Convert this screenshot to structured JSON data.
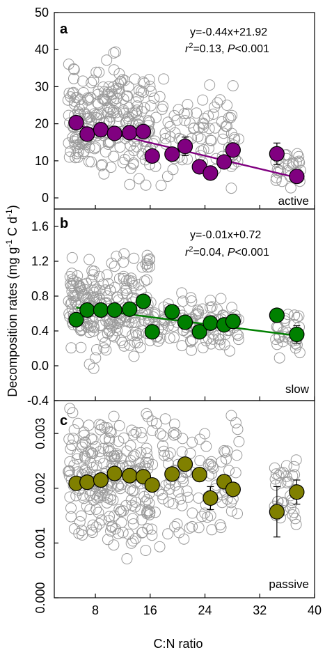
{
  "figure": {
    "ylabel_prefix": "Decomposition rates (mg g",
    "ylabel_exp1": "-1",
    "ylabel_mid": " C d",
    "ylabel_exp2": "-1",
    "ylabel_suffix": ")",
    "xlabel": "C:N ratio"
  },
  "chart_data": [
    {
      "type": "scatter",
      "panel": "a",
      "pool_label": "active",
      "equation": "y=-0.44x+21.92",
      "stats": {
        "r2_text": "=0.13, ",
        "p_text": "<0.001"
      },
      "xlim": [
        2,
        40
      ],
      "ylim": [
        -3,
        50
      ],
      "xticks": [
        8,
        16,
        24,
        32,
        40
      ],
      "yticks": [
        0,
        10,
        20,
        30,
        40,
        50
      ],
      "ytick_labels": [
        "0",
        "10",
        "20",
        "30",
        "40",
        "50"
      ],
      "marker_color": "#800080",
      "line_color": "#800080",
      "trend_line": {
        "slope": -0.44,
        "intercept": 21.92,
        "x_range": [
          5.2,
          37.5
        ]
      },
      "means": [
        {
          "x": 5.2,
          "y": 20.3,
          "err": 0
        },
        {
          "x": 6.8,
          "y": 17.2,
          "err": 0
        },
        {
          "x": 8.8,
          "y": 18.4,
          "err": 0
        },
        {
          "x": 10.8,
          "y": 17.4,
          "err": 0
        },
        {
          "x": 13.0,
          "y": 17.6,
          "err": 0
        },
        {
          "x": 15.0,
          "y": 17.9,
          "err": 0
        },
        {
          "x": 16.3,
          "y": 11.3,
          "err": 1.0
        },
        {
          "x": 19.2,
          "y": 11.8,
          "err": 0
        },
        {
          "x": 21.1,
          "y": 13.9,
          "err": 2.5
        },
        {
          "x": 23.2,
          "y": 8.4,
          "err": 0
        },
        {
          "x": 24.8,
          "y": 6.7,
          "err": 0
        },
        {
          "x": 26.8,
          "y": 9.7,
          "err": 1.3
        },
        {
          "x": 28.1,
          "y": 12.9,
          "err": 0
        },
        {
          "x": 34.5,
          "y": 11.9,
          "err": 2.9
        },
        {
          "x": 37.4,
          "y": 5.8,
          "err": 1.0
        }
      ],
      "raw": {
        "seed": 11,
        "count": 360,
        "clusters": [
          {
            "x": [
              4,
              16
            ],
            "y": [
              0,
              42
            ],
            "w": 0.62
          },
          {
            "x": [
              16,
              29
            ],
            "y": [
              0,
              36
            ],
            "w": 0.3
          },
          {
            "x": [
              34,
              38
            ],
            "y": [
              1,
              16
            ],
            "w": 0.08
          }
        ]
      }
    },
    {
      "type": "scatter",
      "panel": "b",
      "pool_label": "slow",
      "equation": "y=-0.01x+0.72",
      "stats": {
        "r2_text": "=0.04, ",
        "p_text": "<0.001"
      },
      "xlim": [
        2,
        40
      ],
      "ylim": [
        -0.4,
        1.8
      ],
      "xticks": [
        8,
        16,
        24,
        32,
        40
      ],
      "yticks": [
        -0.4,
        0.0,
        0.4,
        0.8,
        1.2,
        1.6
      ],
      "ytick_labels": [
        "-0.4",
        "0.0",
        "0.4",
        "0.8",
        "1.2",
        "1.6"
      ],
      "marker_color": "#008000",
      "line_color": "#008000",
      "trend_line": {
        "slope": -0.01,
        "intercept": 0.72,
        "x_range": [
          5.2,
          37.5
        ]
      },
      "means": [
        {
          "x": 5.2,
          "y": 0.53,
          "err": 0
        },
        {
          "x": 6.8,
          "y": 0.64,
          "err": 0
        },
        {
          "x": 8.8,
          "y": 0.64,
          "err": 0
        },
        {
          "x": 10.8,
          "y": 0.64,
          "err": 0
        },
        {
          "x": 13.0,
          "y": 0.65,
          "err": 0
        },
        {
          "x": 15.0,
          "y": 0.74,
          "err": 0
        },
        {
          "x": 16.3,
          "y": 0.39,
          "err": 0
        },
        {
          "x": 19.2,
          "y": 0.62,
          "err": 0
        },
        {
          "x": 21.1,
          "y": 0.5,
          "err": 0
        },
        {
          "x": 23.2,
          "y": 0.39,
          "err": 0
        },
        {
          "x": 24.8,
          "y": 0.49,
          "err": 0
        },
        {
          "x": 26.8,
          "y": 0.47,
          "err": 0
        },
        {
          "x": 28.1,
          "y": 0.51,
          "err": 0
        },
        {
          "x": 34.5,
          "y": 0.58,
          "err": 0
        },
        {
          "x": 37.4,
          "y": 0.36,
          "err": 0.1
        }
      ],
      "raw": {
        "seed": 23,
        "count": 360,
        "clusters": [
          {
            "x": [
              4,
              16
            ],
            "y": [
              -0.18,
              1.58
            ],
            "w": 0.62
          },
          {
            "x": [
              16,
              29
            ],
            "y": [
              0.05,
              0.95
            ],
            "w": 0.3
          },
          {
            "x": [
              34,
              38
            ],
            "y": [
              0.05,
              0.7
            ],
            "w": 0.08
          }
        ]
      }
    },
    {
      "type": "scatter",
      "panel": "c",
      "pool_label": "passive",
      "xlim": [
        2,
        40
      ],
      "ylim": [
        0.0,
        0.0036
      ],
      "xticks": [
        8,
        16,
        24,
        32,
        40
      ],
      "yticks": [
        0.0,
        0.001,
        0.002,
        0.003
      ],
      "ytick_labels": [
        "0.000",
        "0.001",
        "0.002",
        "0.003"
      ],
      "marker_color": "#808000",
      "means": [
        {
          "x": 5.2,
          "y": 0.00209,
          "err": 0
        },
        {
          "x": 6.8,
          "y": 0.00211,
          "err": 0
        },
        {
          "x": 8.8,
          "y": 0.00215,
          "err": 0
        },
        {
          "x": 10.8,
          "y": 0.00227,
          "err": 0
        },
        {
          "x": 13.0,
          "y": 0.00223,
          "err": 0
        },
        {
          "x": 15.0,
          "y": 0.00221,
          "err": 0
        },
        {
          "x": 16.3,
          "y": 0.00206,
          "err": 0
        },
        {
          "x": 19.2,
          "y": 0.00226,
          "err": 0.00012
        },
        {
          "x": 21.1,
          "y": 0.00244,
          "err": 0
        },
        {
          "x": 23.2,
          "y": 0.00225,
          "err": 0
        },
        {
          "x": 24.8,
          "y": 0.00182,
          "err": 0.00021
        },
        {
          "x": 26.8,
          "y": 0.00212,
          "err": 0.00012
        },
        {
          "x": 28.1,
          "y": 0.00198,
          "err": 0
        },
        {
          "x": 34.5,
          "y": 0.00157,
          "err": 0.00046
        },
        {
          "x": 37.4,
          "y": 0.00193,
          "err": 0.00022
        }
      ],
      "raw": {
        "seed": 37,
        "count": 380,
        "clusters": [
          {
            "x": [
              4,
              16
            ],
            "y": [
              0.0005,
              0.0038
            ],
            "w": 0.62
          },
          {
            "x": [
              16,
              29
            ],
            "y": [
              0.0006,
              0.0038
            ],
            "w": 0.3
          },
          {
            "x": [
              34,
              38
            ],
            "y": [
              0.0011,
              0.003
            ],
            "w": 0.08
          }
        ]
      }
    }
  ]
}
